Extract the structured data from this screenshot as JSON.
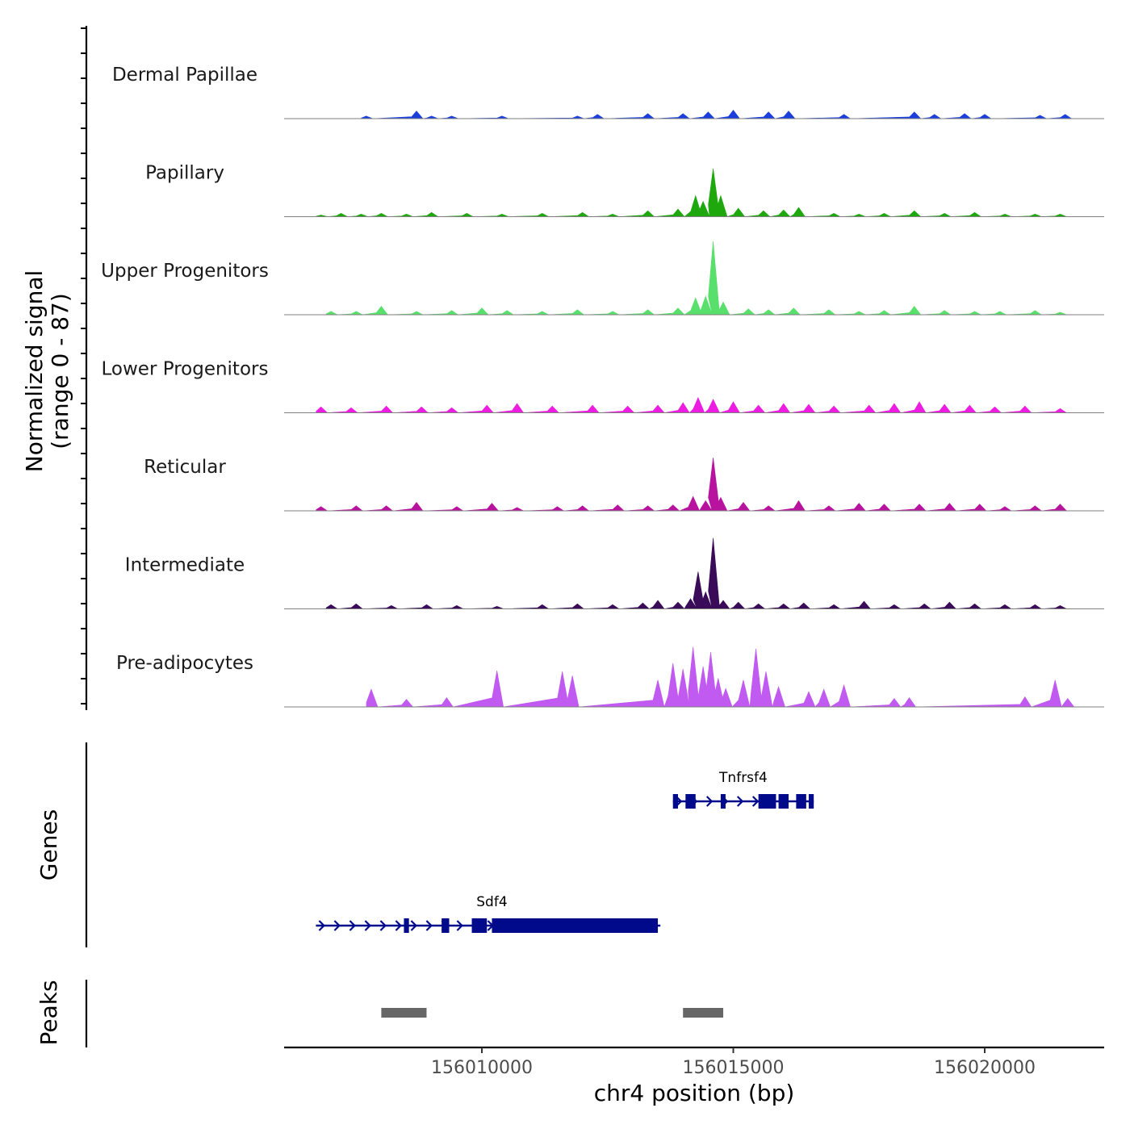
{
  "chart_data": {
    "type": "area",
    "title": "",
    "xlabel": "chr4 position (bp)",
    "ylabel": [
      "Normalized signal",
      "(range 0 - 87)"
    ],
    "ylim": [
      0,
      87
    ],
    "xlim": [
      156006000,
      156022300
    ],
    "x_ticks": [
      156010000,
      156015000,
      156020000
    ],
    "x_tick_labels": [
      "156010000",
      "156015000",
      "156020000"
    ],
    "coverage_tracks": [
      {
        "name": "Dermal Papillae",
        "color": "#1a3fdc",
        "x": [
          156007700,
          156008700,
          156009000,
          156009400,
          156010400,
          156011900,
          156012300,
          156013300,
          156014000,
          156014500,
          156015000,
          156015700,
          156016100,
          156017200,
          156018600,
          156019000,
          156019600,
          156020000,
          156021100,
          156021600
        ],
        "y": [
          3,
          9,
          3,
          3,
          3,
          3,
          5,
          6,
          6,
          8,
          10,
          8,
          9,
          5,
          8,
          5,
          6,
          5,
          4,
          5
        ]
      },
      {
        "name": "Papillary",
        "color": "#1ea80e",
        "x": [
          156006800,
          156007200,
          156007600,
          156008000,
          156008500,
          156009000,
          156009700,
          156010400,
          156011200,
          156012000,
          156012600,
          156013300,
          156013900,
          156014250,
          156014400,
          156014600,
          156014750,
          156015100,
          156015600,
          156016000,
          156016300,
          156017000,
          156017500,
          156018000,
          156018600,
          156019200,
          156019800,
          156020400,
          156021000,
          156021500
        ],
        "y": [
          2,
          4,
          3,
          4,
          3,
          5,
          4,
          3,
          4,
          5,
          3,
          7,
          9,
          25,
          18,
          57,
          25,
          10,
          7,
          8,
          11,
          4,
          3,
          4,
          7,
          4,
          5,
          3,
          3,
          3
        ]
      },
      {
        "name": "Upper Progenitors",
        "color": "#59df6b",
        "x": [
          156007000,
          156007500,
          156008000,
          156008700,
          156009400,
          156010000,
          156010500,
          156011200,
          156011900,
          156012600,
          156013300,
          156013900,
          156014250,
          156014450,
          156014600,
          156014800,
          156015300,
          156015700,
          156016200,
          156016900,
          156017500,
          156018000,
          156018600,
          156019200,
          156019800,
          156020300,
          156021000,
          156021500
        ],
        "y": [
          4,
          4,
          10,
          4,
          5,
          8,
          5,
          4,
          6,
          4,
          6,
          8,
          20,
          22,
          87,
          15,
          7,
          6,
          8,
          6,
          4,
          5,
          10,
          5,
          4,
          4,
          5,
          3
        ]
      },
      {
        "name": "Lower Progenitors",
        "color": "#ec1ce0",
        "x": [
          156006800,
          156007400,
          156008100,
          156008800,
          156009400,
          156010100,
          156010700,
          156011400,
          156012200,
          156012900,
          156013500,
          156014000,
          156014300,
          156014600,
          156015000,
          156015500,
          156016000,
          156016500,
          156017000,
          156017700,
          156018200,
          156018700,
          156019200,
          156019700,
          156020200,
          156020800,
          156021500
        ],
        "y": [
          7,
          6,
          8,
          7,
          6,
          9,
          11,
          8,
          9,
          8,
          9,
          12,
          18,
          16,
          13,
          9,
          11,
          10,
          8,
          9,
          11,
          13,
          10,
          9,
          7,
          8,
          5
        ]
      },
      {
        "name": "Reticular",
        "color": "#b8139f",
        "x": [
          156006800,
          156007500,
          156008100,
          156008700,
          156009500,
          156010200,
          156010700,
          156011500,
          156012000,
          156012700,
          156013300,
          156013800,
          156014200,
          156014450,
          156014600,
          156014750,
          156015200,
          156015700,
          156016300,
          156016900,
          156017500,
          156018000,
          156018700,
          156019300,
          156019900,
          156020400,
          156021000,
          156021500
        ],
        "y": [
          5,
          6,
          6,
          10,
          5,
          9,
          4,
          5,
          6,
          7,
          6,
          7,
          17,
          12,
          63,
          16,
          10,
          6,
          12,
          6,
          9,
          8,
          8,
          9,
          8,
          5,
          6,
          8
        ]
      },
      {
        "name": "Intermediate",
        "color": "#3a0b58",
        "x": [
          156007000,
          156007500,
          156008200,
          156008900,
          156009500,
          156010300,
          156011200,
          156011900,
          156012600,
          156013200,
          156013500,
          156013900,
          156014150,
          156014300,
          156014450,
          156014600,
          156014800,
          156015100,
          156015500,
          156016000,
          156016400,
          156017000,
          156017600,
          156018200,
          156018800,
          156019300,
          156019800,
          156020400,
          156021000,
          156021500
        ],
        "y": [
          5,
          6,
          4,
          5,
          4,
          3,
          5,
          6,
          5,
          7,
          10,
          8,
          12,
          44,
          20,
          84,
          10,
          8,
          6,
          6,
          7,
          5,
          9,
          5,
          6,
          8,
          6,
          5,
          5,
          4
        ]
      },
      {
        "name": "Pre-adipocytes",
        "color": "#c15af0",
        "x": [
          156007800,
          156008500,
          156009300,
          156010300,
          156011600,
          156011800,
          156013500,
          156013800,
          156014000,
          156014200,
          156014400,
          156014550,
          156014700,
          156014850,
          156015200,
          156015450,
          156015650,
          156015900,
          156016500,
          156016800,
          156017200,
          156018200,
          156018500,
          156020800,
          156021400,
          156021650
        ],
        "y": [
          21,
          9,
          11,
          43,
          42,
          37,
          32,
          52,
          45,
          71,
          48,
          65,
          34,
          22,
          32,
          69,
          42,
          24,
          18,
          21,
          26,
          10,
          11,
          12,
          32,
          10
        ]
      }
    ],
    "genes": [
      {
        "name": "Tnfrsf4",
        "start": 156013800,
        "end": 156016600,
        "strand": "+",
        "row": 1,
        "exons": [
          [
            156013800,
            156013900
          ],
          [
            156014050,
            156014250
          ],
          [
            156014750,
            156014800
          ],
          [
            156015500,
            156015850
          ],
          [
            156015900,
            156016100
          ],
          [
            156016250,
            156016450
          ],
          [
            156016500,
            156016600
          ]
        ]
      },
      {
        "name": "Sdf4",
        "start": 156006700,
        "end": 156013550,
        "strand": "+",
        "row": 2,
        "exons": [
          [
            156008450,
            156008550
          ],
          [
            156009200,
            156009350
          ],
          [
            156009800,
            156010100
          ],
          [
            156010200,
            156013500
          ]
        ]
      }
    ],
    "peaks": [
      {
        "start": 156008000,
        "end": 156008900
      },
      {
        "start": 156014000,
        "end": 156014800
      }
    ],
    "panel_labels": {
      "genes": "Genes",
      "peaks": "Peaks"
    }
  }
}
